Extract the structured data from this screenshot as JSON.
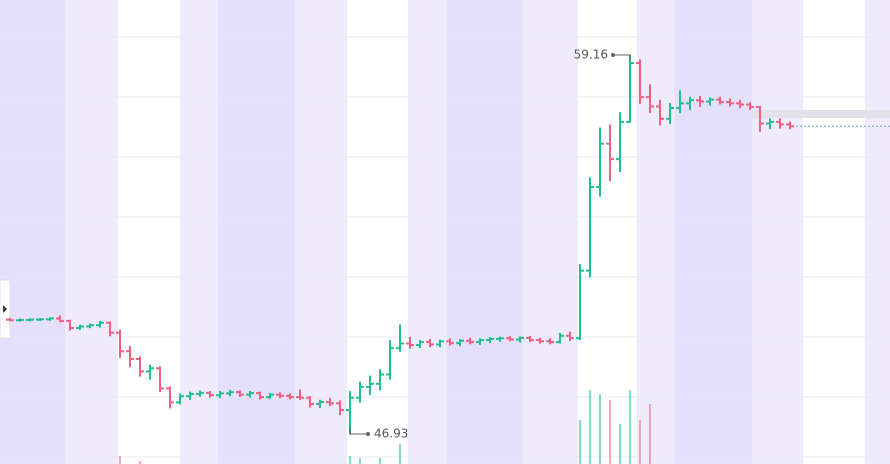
{
  "chart_data": {
    "type": "ohlc",
    "up_color": "#1fbf8f",
    "down_color": "#f0607f",
    "open": [
      50.62,
      50.6,
      50.61,
      50.62,
      50.63,
      50.66,
      50.58,
      50.35,
      50.4,
      50.44,
      50.52,
      50.2,
      49.6,
      49.35,
      48.95,
      49.05,
      48.4,
      47.95,
      48.15,
      48.22,
      48.26,
      48.18,
      48.24,
      48.28,
      48.2,
      48.25,
      48.12,
      48.2,
      48.16,
      48.12,
      48.1,
      47.9,
      47.96,
      47.92,
      47.7,
      48.1,
      48.45,
      48.55,
      48.85,
      49.7,
      49.85,
      49.8,
      49.9,
      49.82,
      49.92,
      49.86,
      49.94,
      49.9,
      49.96,
      50.0,
      50.02,
      49.98,
      50.03,
      49.96,
      49.92,
      49.9,
      50.1,
      50.02,
      52.2,
      54.9,
      56.3,
      55.8,
      57.0,
      58.9,
      57.8,
      57.5,
      57.1,
      57.45,
      57.6,
      57.7,
      57.66,
      57.72,
      57.64,
      57.6,
      57.56,
      57.48,
      56.95,
      57.0,
      56.92
    ],
    "high": [
      50.66,
      50.64,
      50.65,
      50.66,
      50.68,
      50.74,
      50.6,
      50.44,
      50.48,
      50.56,
      50.55,
      50.28,
      49.75,
      49.42,
      49.15,
      49.1,
      48.45,
      48.22,
      48.28,
      48.32,
      48.3,
      48.3,
      48.34,
      48.32,
      48.3,
      48.28,
      48.24,
      48.26,
      48.22,
      48.35,
      48.14,
      48.02,
      48.08,
      48.0,
      48.3,
      48.6,
      48.8,
      49.0,
      49.95,
      50.45,
      50.05,
      49.95,
      49.98,
      49.96,
      50.0,
      49.98,
      50.02,
      50.0,
      50.04,
      50.06,
      50.08,
      50.06,
      50.08,
      50.02,
      50.0,
      50.18,
      50.22,
      52.4,
      55.2,
      56.8,
      56.9,
      57.3,
      59.16,
      59.0,
      58.2,
      57.7,
      57.6,
      58.0,
      57.8,
      57.82,
      57.78,
      57.8,
      57.74,
      57.7,
      57.62,
      57.5,
      57.1,
      57.1,
      57.0
    ],
    "low": [
      50.58,
      50.57,
      50.58,
      50.59,
      50.6,
      50.55,
      50.28,
      50.3,
      50.36,
      50.38,
      50.1,
      49.4,
      49.1,
      48.8,
      48.7,
      48.3,
      47.77,
      47.9,
      48.05,
      48.15,
      48.12,
      48.1,
      48.16,
      48.14,
      48.12,
      48.06,
      48.08,
      48.1,
      48.06,
      48.05,
      47.8,
      47.78,
      47.85,
      47.55,
      46.93,
      47.95,
      48.2,
      48.35,
      48.7,
      49.6,
      49.7,
      49.72,
      49.75,
      49.74,
      49.8,
      49.78,
      49.84,
      49.82,
      49.88,
      49.92,
      49.94,
      49.9,
      49.92,
      49.86,
      49.84,
      49.86,
      49.95,
      49.98,
      52.0,
      54.6,
      55.1,
      55.4,
      57.0,
      57.6,
      57.3,
      56.9,
      56.95,
      57.3,
      57.4,
      57.5,
      57.54,
      57.58,
      57.52,
      57.46,
      57.4,
      56.7,
      56.78,
      56.8,
      56.78
    ],
    "close": [
      50.6,
      50.61,
      50.62,
      50.63,
      50.66,
      50.58,
      50.35,
      50.4,
      50.44,
      50.52,
      50.2,
      49.6,
      49.35,
      48.95,
      49.05,
      48.4,
      47.95,
      48.15,
      48.22,
      48.26,
      48.18,
      48.24,
      48.28,
      48.2,
      48.25,
      48.12,
      48.2,
      48.16,
      48.12,
      48.1,
      47.9,
      47.96,
      47.92,
      47.7,
      48.1,
      48.45,
      48.55,
      48.85,
      49.7,
      49.85,
      49.8,
      49.9,
      49.82,
      49.92,
      49.86,
      49.94,
      49.9,
      49.96,
      50.0,
      50.02,
      49.98,
      50.03,
      49.96,
      49.92,
      49.9,
      50.1,
      50.02,
      52.2,
      54.9,
      56.3,
      55.8,
      57.0,
      58.9,
      57.8,
      57.5,
      57.1,
      57.45,
      57.6,
      57.7,
      57.66,
      57.72,
      57.64,
      57.6,
      57.56,
      57.48,
      56.95,
      57.0,
      56.92,
      56.86
    ],
    "volume": [
      0,
      0,
      0,
      0,
      0,
      0,
      0,
      0,
      0,
      0,
      0,
      8,
      0,
      3,
      0,
      0,
      0,
      0,
      0,
      0,
      0,
      0,
      0,
      0,
      0,
      0,
      0,
      0,
      0,
      0,
      0,
      0,
      0,
      0,
      8,
      6,
      0,
      6,
      0,
      20,
      0,
      0,
      0,
      0,
      0,
      0,
      0,
      0,
      0,
      0,
      0,
      0,
      0,
      0,
      0,
      0,
      0,
      44,
      74,
      70,
      64,
      40,
      74,
      44,
      60,
      0,
      0,
      0,
      0,
      0,
      0,
      0,
      0,
      0,
      0,
      0,
      0,
      0,
      0
    ]
  }
}
